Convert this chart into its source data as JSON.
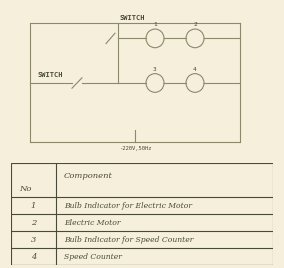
{
  "bg_color": "#f5efdc",
  "line_color": "#8a8a6a",
  "text_color": "#4a4a3a",
  "circuit": {
    "top_switch_label": "SWITCH",
    "bottom_switch_label": "SWITCH",
    "voltage_label": "-220V,50Hz"
  },
  "table": {
    "header_no": "No",
    "header_comp": "Component",
    "rows": [
      {
        "no": "1",
        "component": "Bulb Indicator for Electric Motor"
      },
      {
        "no": "2",
        "component": "Electric Motor"
      },
      {
        "no": "3",
        "component": "Bulb Indicator for Speed Counter"
      },
      {
        "no": "4",
        "component": "Speed Counter"
      }
    ]
  }
}
